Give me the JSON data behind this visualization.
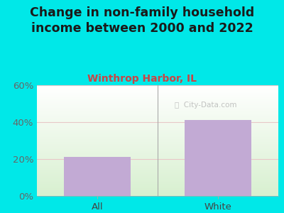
{
  "title": "Change in non-family household\nincome between 2000 and 2022",
  "subtitle": "Winthrop Harbor, IL",
  "categories": [
    "All",
    "White"
  ],
  "values": [
    21,
    41
  ],
  "bar_color": "#c2aad4",
  "title_fontsize": 12.5,
  "subtitle_fontsize": 10,
  "subtitle_color": "#cc4444",
  "title_color": "#1a1a1a",
  "tick_label_fontsize": 9.5,
  "ylim": [
    0,
    60
  ],
  "yticks": [
    0,
    20,
    40,
    60
  ],
  "ytick_labels": [
    "0%",
    "20%",
    "40%",
    "60%"
  ],
  "background_outer": "#00e8e8",
  "grid_color": "#e8c8c8",
  "watermark": "ⓘ  City-Data.com"
}
